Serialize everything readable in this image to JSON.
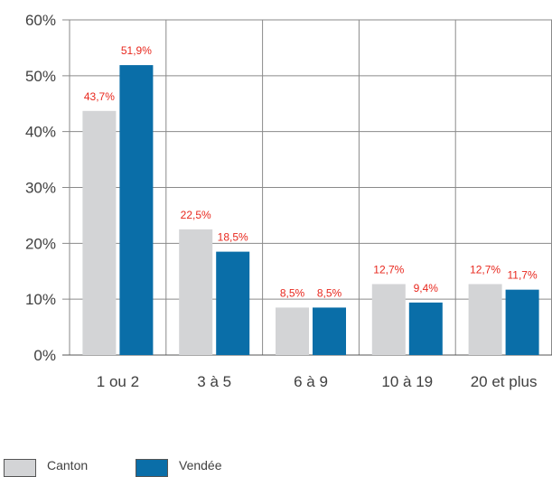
{
  "chart_data": {
    "type": "bar",
    "categories": [
      "1 ou 2",
      "3 à 5",
      "6 à 9",
      "10 à 19",
      "20 et plus"
    ],
    "series": [
      {
        "name": "Canton",
        "color": "#d3d4d6",
        "values": [
          43.7,
          22.5,
          8.5,
          12.7,
          12.7
        ],
        "labels": [
          "43,7%",
          "22,5%",
          "8,5%",
          "12,7%",
          "12,7%"
        ]
      },
      {
        "name": "Vendée",
        "color": "#0a6ea8",
        "values": [
          51.9,
          18.5,
          8.5,
          9.4,
          11.7
        ],
        "labels": [
          "51,9%",
          "18,5%",
          "8,5%",
          "9,4%",
          "11,7%"
        ]
      }
    ],
    "yticks": [
      "0%",
      "10%",
      "20%",
      "30%",
      "40%",
      "50%",
      "60%"
    ],
    "ylim": [
      0,
      60
    ],
    "grid": true,
    "legend": "bottom-left",
    "title": "",
    "xlabel": "",
    "ylabel": ""
  }
}
